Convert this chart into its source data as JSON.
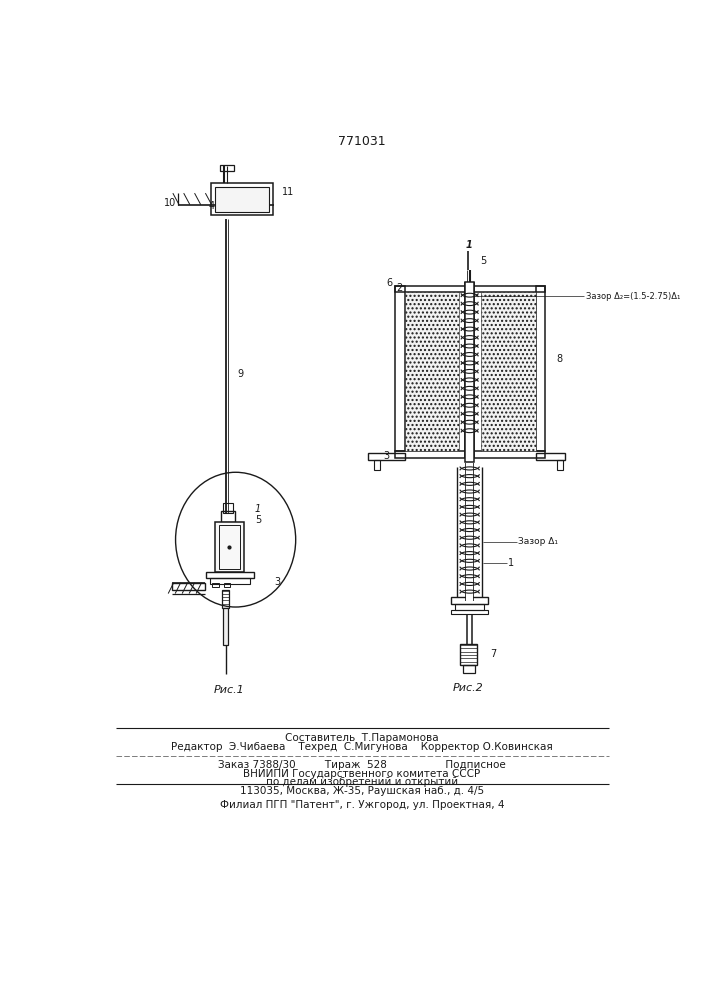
{
  "title": "771031",
  "bg_color": "#ffffff",
  "line_color": "#1a1a1a",
  "fig1_caption": "Рис.1",
  "fig2_caption": "Рис.2",
  "footer_line1": "Составитель  Т.Парамонова",
  "footer_line2": "Редактор  Э.Чибаева    Техред  С.Мигунова    Корректор О.Ковинская",
  "footer_line3": "Заказ 7388/30         Тираж  528                  Подписное",
  "footer_line4": "ВНИИПИ Государственного комитета СССР",
  "footer_line5": "по делам изобретений и открытий",
  "footer_line6": "113035, Москва, Ж-35, Раушская наб., д. 4/5",
  "footer_line7": "Филиал ПГП \"Патент\", г. Ужгород, ул. Проектная, 4"
}
